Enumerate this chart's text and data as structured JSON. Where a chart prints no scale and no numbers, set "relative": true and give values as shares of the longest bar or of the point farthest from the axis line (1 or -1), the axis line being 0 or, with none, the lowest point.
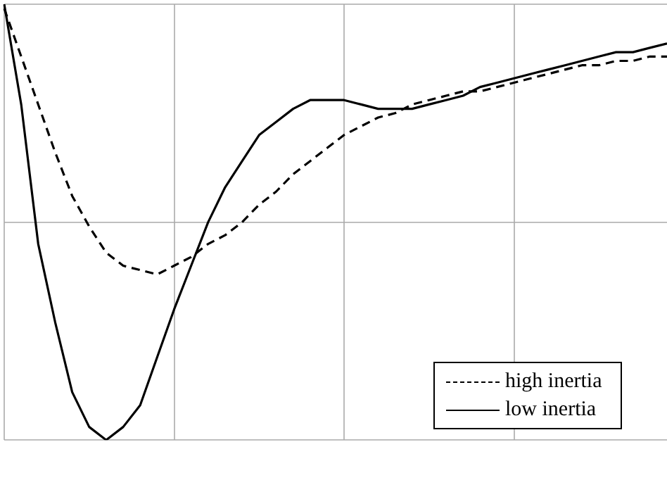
{
  "chart_data": {
    "type": "line",
    "relative": true,
    "grid": true,
    "legend": "bottom right",
    "marker": "none",
    "categories": [
      null,
      null,
      null,
      null,
      null,
      null,
      null,
      null,
      null,
      null,
      null,
      null,
      null,
      null,
      null,
      null,
      null,
      null,
      null,
      null,
      null,
      null,
      null,
      null,
      null,
      null,
      null,
      null,
      null,
      null,
      null,
      null,
      null,
      null,
      null,
      null,
      null,
      null,
      null,
      null
    ],
    "series": [
      {
        "name": "high inertia",
        "color": "#000000",
        "line_style": "dashed",
        "values": [
          0.99,
          0.88,
          0.77,
          0.66,
          0.56,
          0.49,
          0.43,
          0.4,
          0.39,
          0.38,
          0.4,
          0.42,
          0.45,
          0.47,
          0.5,
          0.54,
          0.57,
          0.61,
          0.64,
          0.67,
          0.7,
          0.72,
          0.74,
          0.75,
          0.77,
          0.78,
          0.79,
          0.8,
          0.8,
          0.81,
          0.82,
          0.83,
          0.84,
          0.85,
          0.86,
          0.86,
          0.87,
          0.87,
          0.88,
          0.88
        ]
      },
      {
        "name": "low inertia",
        "color": "#000000",
        "line_style": "solid",
        "values": [
          1.0,
          0.77,
          0.45,
          0.27,
          0.11,
          0.03,
          0,
          0.03,
          0.08,
          0.19,
          0.3,
          0.4,
          0.5,
          0.58,
          0.64,
          0.7,
          0.73,
          0.76,
          0.78,
          0.78,
          0.78,
          0.77,
          0.76,
          0.76,
          0.76,
          0.77,
          0.78,
          0.79,
          0.81,
          0.82,
          0.83,
          0.84,
          0.85,
          0.86,
          0.87,
          0.88,
          0.89,
          0.89,
          0.9,
          0.91
        ]
      }
    ]
  }
}
